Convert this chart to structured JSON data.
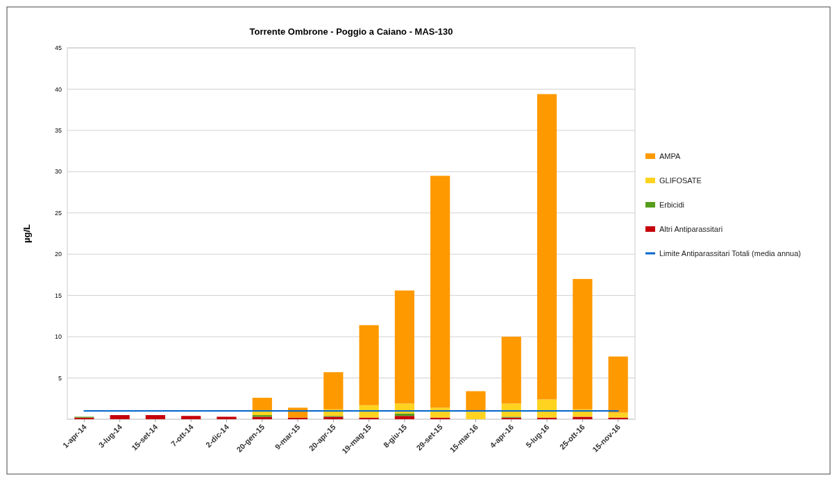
{
  "chart_data": {
    "type": "bar",
    "title": "Torrente Ombrone - Poggio a Caiano - MAS-130",
    "ylabel": "µg/L",
    "categories": [
      "1-apr-14",
      "3-lug-14",
      "15-set-14",
      "7-ott-14",
      "2-dic-14",
      "20-gen-15",
      "9-mar-15",
      "20-apr-15",
      "19-mag-15",
      "8-giu-15",
      "29-set-15",
      "15-mar-16",
      "4-apr-16",
      "5-lug-16",
      "25-ott-16",
      "15-nov-16"
    ],
    "stacked": true,
    "ylim": [
      0,
      45
    ],
    "yticks": [
      {
        "value": 0,
        "label": null
      },
      5,
      10,
      15,
      20,
      25,
      30,
      35,
      40,
      45
    ],
    "grid": "y",
    "legend": "right",
    "series": [
      {
        "name": "Altri Antiparassitari",
        "color": "#c5000b",
        "values": [
          0.2,
          0.5,
          0.5,
          0.4,
          0.3,
          0.3,
          0.2,
          0.3,
          0.2,
          0.4,
          0.2,
          0,
          0.2,
          0.2,
          0.3,
          0.2
        ]
      },
      {
        "name": "Erbicidi",
        "color": "#579d1c",
        "values": [
          0.1,
          0,
          0,
          0,
          0,
          0.2,
          0,
          0.1,
          0,
          0.3,
          0,
          0,
          0.1,
          0,
          0,
          0
        ]
      },
      {
        "name": "GLIFOSATE",
        "color": "#ffd320",
        "values": [
          0,
          0,
          0,
          0,
          0,
          0.6,
          0,
          0.8,
          1.5,
          1.2,
          1.2,
          0.9,
          1.6,
          2.2,
          0.9,
          0.6
        ]
      },
      {
        "name": "AMPA",
        "color": "#ff9900",
        "values": [
          0,
          0,
          0,
          0,
          0,
          1.5,
          1.2,
          4.5,
          9.7,
          13.7,
          28.1,
          2.5,
          8.1,
          37.0,
          15.8,
          6.8
        ]
      },
      {
        "name": "Limite Antiparassitari Totali (media annua)",
        "type": "line",
        "color": "#0066cc",
        "values": [
          1,
          1,
          1,
          1,
          1,
          1,
          1,
          1,
          1,
          1,
          1,
          1,
          1,
          1,
          1,
          1
        ]
      }
    ]
  }
}
